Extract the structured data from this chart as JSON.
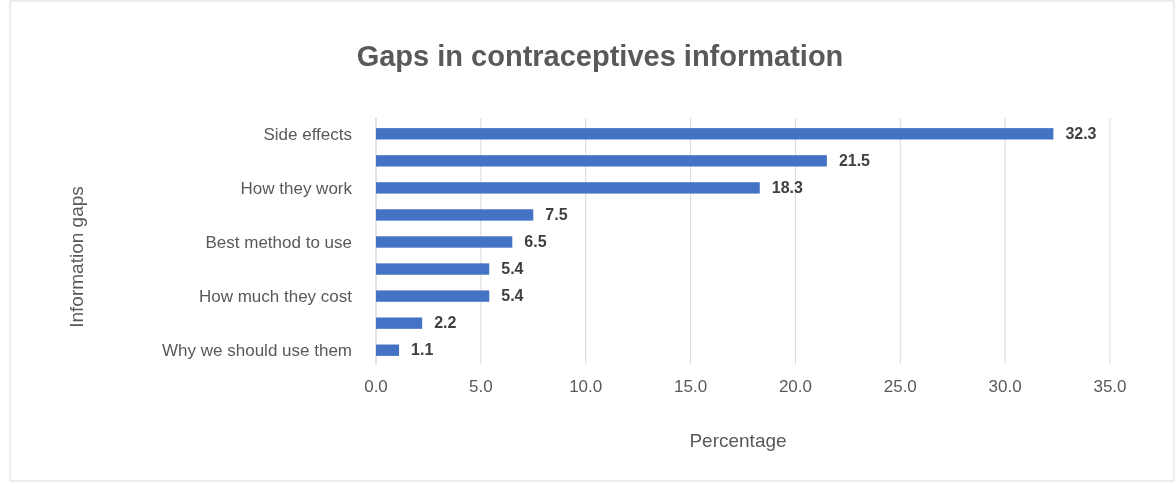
{
  "chart_data": {
    "type": "bar",
    "orientation": "horizontal",
    "title": "Gaps in contraceptives information",
    "xlabel": "Percentage",
    "ylabel": "Information gaps",
    "categories": [
      "Side effects",
      null,
      "How they work",
      null,
      "Best method to use",
      null,
      "How much they cost",
      null,
      "Why we should use them"
    ],
    "values": [
      32.3,
      21.5,
      18.3,
      7.5,
      6.5,
      5.4,
      5.4,
      2.2,
      1.1
    ],
    "color": "#4472c4",
    "xlim": [
      0,
      35
    ],
    "xticks": [
      {
        "value": 0,
        "label": "0.0"
      },
      {
        "value": 5,
        "label": "5.0"
      },
      {
        "value": 10,
        "label": "10.0"
      },
      {
        "value": 15,
        "label": "15.0"
      },
      {
        "value": 20,
        "label": "20.0"
      },
      {
        "value": 25,
        "label": "25.0"
      },
      {
        "value": 30,
        "label": "30.0"
      },
      {
        "value": 35,
        "label": "35.0"
      }
    ],
    "grid": "x",
    "data_labels": true
  }
}
